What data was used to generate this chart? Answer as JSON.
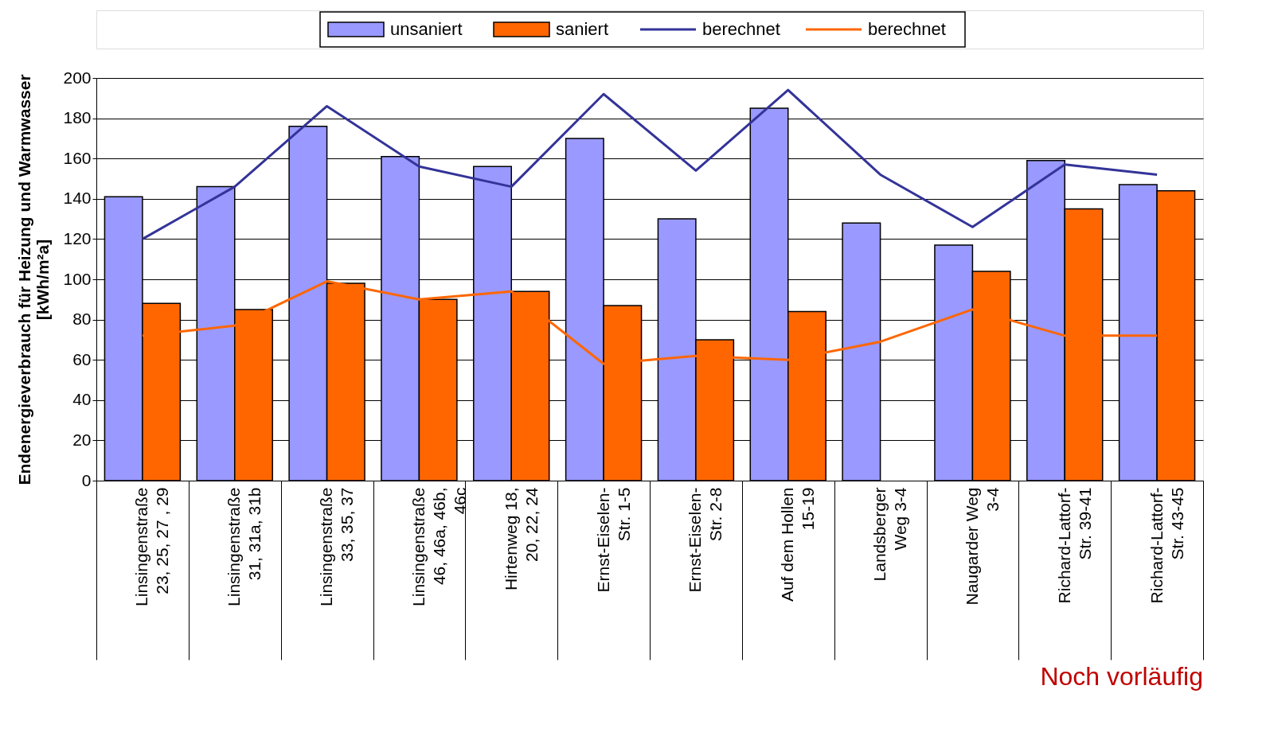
{
  "chart_data": {
    "type": "bar",
    "ylabel": "Endenergieverbrauch für Heizung und Warmwasser\n[kWh/m²a]",
    "categories": [
      "Linsingenstraße\n23, 25, 27 , 29",
      "Linsingenstraße\n31, 31a, 31b",
      "Linsingenstraße\n33, 35, 37",
      "Linsingenstraße\n46, 46a, 46b,\n46c",
      "Hirtenweg 18,\n20, 22, 24",
      "Ernst-Eiselen-\nStr. 1-5",
      "Ernst-Eiselen-\nStr. 2-8",
      "Auf dem Hollen\n15-19",
      "Landsberger\nWeg 3-4",
      "Naugarder Weg\n3-4",
      "Richard-Lattorf-\nStr. 39-41",
      "Richard-Lattorf-\nStr. 43-45"
    ],
    "series": [
      {
        "name": "unsaniert",
        "color": "#9999ff",
        "values": [
          141,
          146,
          176,
          161,
          156,
          170,
          130,
          185,
          128,
          117,
          159,
          147
        ]
      },
      {
        "name": "saniert",
        "color": "#ff6600",
        "values": [
          88,
          85,
          98,
          90,
          94,
          87,
          70,
          84,
          null,
          104,
          135,
          144
        ]
      },
      {
        "name": "berechnet",
        "type": "line",
        "color": "#333399",
        "values": [
          120,
          146,
          186,
          156,
          146,
          192,
          154,
          194,
          152,
          126,
          157,
          152
        ]
      },
      {
        "name": "berechnet",
        "type": "line",
        "color": "#ff6600",
        "values": [
          72,
          77,
          99,
          90,
          94,
          58,
          62,
          60,
          69,
          85,
          72,
          72
        ]
      }
    ],
    "ylim": [
      0,
      200
    ],
    "yticks": [
      0,
      20,
      40,
      60,
      80,
      100,
      120,
      140,
      160,
      180,
      200
    ],
    "grid": "y",
    "legend": "top",
    "annotations": [
      "Noch vorläufig"
    ]
  }
}
